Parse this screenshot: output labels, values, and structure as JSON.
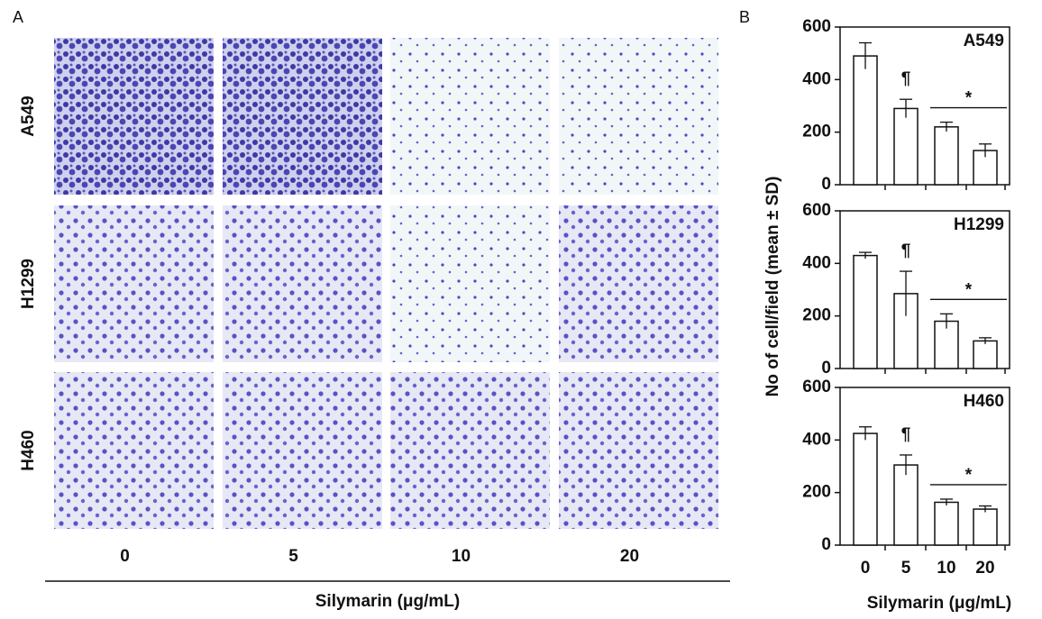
{
  "panel_a": {
    "label": "A",
    "row_labels": [
      "A549",
      "H1299",
      "H460"
    ],
    "column_labels": [
      "0",
      "5",
      "10",
      "20"
    ],
    "xlabel": "Silymarin (μg/mL)"
  },
  "panel_b": {
    "label": "B",
    "ylabel": "No of cell/field (mean ± SD)",
    "xlabel": "Silymarin (μg/mL)"
  },
  "chart_data": [
    {
      "type": "bar",
      "title": "A549",
      "categories": [
        null,
        null,
        null,
        null
      ],
      "values": [
        490,
        290,
        220,
        130
      ],
      "errors": [
        50,
        35,
        18,
        25
      ],
      "color": "#ffffff",
      "ylim": [
        0,
        600
      ],
      "yticks": [
        0,
        200,
        400,
        600
      ],
      "annotations": [
        "¶",
        "*"
      ]
    },
    {
      "type": "bar",
      "title": "H1299",
      "categories": [
        null,
        null,
        null,
        null
      ],
      "values": [
        430,
        285,
        180,
        105
      ],
      "errors": [
        12,
        85,
        28,
        12
      ],
      "color": "#ffffff",
      "ylim": [
        0,
        600
      ],
      "yticks": [
        0,
        200,
        400,
        600
      ],
      "annotations": [
        "¶",
        "*"
      ]
    },
    {
      "type": "bar",
      "title": "H460",
      "categories": [
        "0",
        "5",
        "10",
        "20"
      ],
      "values": [
        425,
        305,
        163,
        137
      ],
      "errors": [
        25,
        38,
        12,
        12
      ],
      "color": "#ffffff",
      "ylim": [
        0,
        600
      ],
      "yticks": [
        0,
        200,
        400,
        600
      ],
      "annotations": [
        "¶",
        "*"
      ]
    }
  ]
}
